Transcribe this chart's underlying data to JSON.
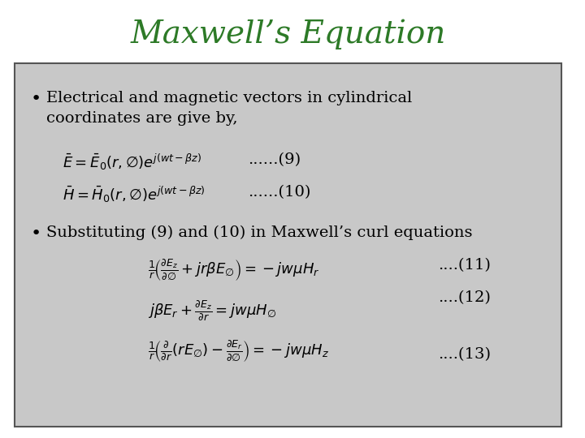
{
  "title": "Maxwell’s Equation",
  "title_color": "#2D7A27",
  "title_fontsize": 28,
  "bg_color": "#C8C8C8",
  "slide_bg": "#FFFFFF",
  "box_edge_color": "#555555",
  "bullet1_text": "Electrical and magnetic vectors in cylindrical\ncoordinates are give by,",
  "bullet2_text": "Substituting (9) and (10) in Maxwell’s curl equations",
  "eq9_label": "......(9)",
  "eq10_label": "......(10)",
  "eq11_label": "....(11)",
  "eq12_label": "....(12)",
  "eq13_label": "....(13)",
  "text_color": "#000000",
  "body_fontsize": 14
}
